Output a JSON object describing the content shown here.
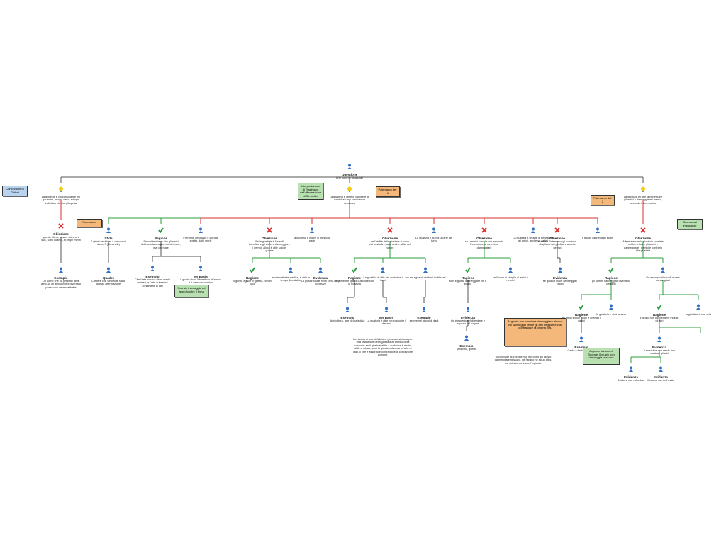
{
  "nodes": [
    {
      "label": "Questione",
      "text": "Che cos'è la Giustizia?"
    },
    {
      "text": "La giustizia è ciò consistente nel garantire, in ogni caso, ad ogni individuo ciò che gli spetta"
    },
    {
      "text": "La giustizia è l'arte di condurre gli uomini ad una convivenza armonica"
    },
    {
      "text": "La giustizia è l'arte di beneficare gli amici e danneggiare i nemici, secondo il loro merito"
    },
    {
      "label": "Obiezione",
      "text": "questo ritiene essere ciò che è suo, sotto quanto, ai propri meriti"
    },
    {
      "label": "Sfida",
      "text": "È giusto restituire a ciascuno i doveri? (Simonide)"
    },
    {
      "label": "Ragione",
      "text": "Simonide ritiene che gli amici debbano fare agli amici del bene, mai del male"
    },
    {
      "text": "Il termine del giusto è ciò che spetta, dati i meriti"
    },
    {
      "label": "Obiezione",
      "text": "Se la giustizia è l'arte di beneficare gli amici e danneggiare i nemici, allora è utile solo in guerra"
    },
    {
      "text": "la giustizia è inutile in tempo di pace"
    },
    {
      "label": "Obiezione",
      "text": "se l'abilità della giustizia si trova nel custodire, sarà anche abile nel rubare"
    },
    {
      "text": "La giustizia è quindi un'arte del furto"
    },
    {
      "label": "Obiezione",
      "text": "se i nemici sono buoni, secondo Polemarco, si dovrebbe danneggiarli"
    },
    {
      "text": "La giustizia è un'arte di beneficare gli amici, anche se cattivi"
    },
    {
      "label": "Obiezione",
      "text": "secondo Polemarco gli uomini si sbagliano nel giudicare amici e nemici"
    },
    {
      "text": "Il giusto danneggia i buoni"
    },
    {
      "label": "Obiezione",
      "text": "Affermare che la giustizia consiste nel beneficare gli amici e danneggiare i nemici è contrario alla giustizia"
    },
    {
      "label": "Esempio",
      "text": "Un uomo che ha prestato delle armi ad un amico che è diventato pazzo non deve restituirle"
    },
    {
      "label": "Quadro",
      "text": "Credere che Simonide sia di questa affermazione"
    },
    {
      "label": "Esempio",
      "text": "Che l'arte medica dà ai corpi i farmaci, e l'arte culinaria i condimenti ai cibi"
    },
    {
      "label": "My Basis",
      "text": "Il giusto dona il beneficio all'amico e il danno al nemico"
    },
    {
      "label": "Ragione",
      "text": "Il giusto agisce in guerra, non in pace"
    },
    {
      "text": "anche nell'arte medica, è utile in tempo di malattia"
    },
    {
      "label": "Evidenza",
      "text": "La giustizia utile nella sfera delle ricchezze"
    },
    {
      "label": "Ragione",
      "text": "Si potrebbe quindi custodire con la giustizia"
    },
    {
      "text": "La giustizia è utile per custodire i beni"
    },
    {
      "text": "ma nei riguardi dei beni inutilizzati"
    },
    {
      "label": "Ragione",
      "text": "Non è giusto danneggiare chi è buono"
    },
    {
      "text": "se l'uomo si sbaglia di amici e nemici"
    },
    {
      "label": "Evidenza",
      "text": "se giudica male, danneggia i buoni"
    },
    {
      "label": "Ragione",
      "text": "gli uomini danneggiati diventano peggiori"
    },
    {
      "text": "Un esempio di cavalli e cani danneggiati"
    },
    {
      "label": "Esempio",
      "text": "Agricoltura, arte del calzolaio"
    },
    {
      "label": "My Basis",
      "text": "La giustizia è utile per custodire il denaro"
    },
    {
      "label": "Esempio",
      "text": "servire nei giochi di dadi"
    },
    {
      "label": "Evidenza",
      "text": "chi è esperto nel difendere è esperto nel colpire"
    },
    {
      "label": "Esempio",
      "text": "Medicina, guerra"
    },
    {
      "label": "Ragione",
      "text": "gli amici sono i buoni e i nemici i cattivi"
    },
    {
      "text": "la giustizia è virtù umana"
    },
    {
      "label": "Ragione",
      "text": "il giusto non può rendere ingiusti gli altri"
    },
    {
      "text": "la giustizia è una virtù"
    },
    {
      "label": "Esempio",
      "text": "Caldo e freddo, musica"
    },
    {
      "label": "Evidenza",
      "text": "Il musicista non rende non musicali gli altri"
    },
    {
      "label": "Evidenza",
      "text": "Il calore non raffredda"
    },
    {
      "label": "Evidenza",
      "text": "Il buono non fa il male"
    }
  ],
  "notes": [
    "Concezione di Grifoni",
    "Interpretazione di Trasimaco dell'affermazione di Simonide",
    "Polemarco def. 1",
    "Polemarco def. 2",
    "Polemarco",
    "Socrate ad imputatore",
    "Socrate incoraggia ad approfondire il tema",
    "Al giusto non conviene danneggiare alcuno: chi danneggia rende gli altri peggiori e così contraddice la propria virtù",
    "Argomentazione di Socrate: il giusto non danneggia nessuno"
  ],
  "paragraphs": [
    "La risorsa di una definizione generale si rivela per una restrizione della giustizia all'ambito della custodia: se il giusto è abile a custodire è anche abile a rubare; così la giustizia diventa un'arte di ladri, il che è assurdo e contraddice la concezione comune.",
    "Si conclude quindi che non è proprio del giusto danneggiare nessuno, né l'amico né alcun altro, ma del suo contrario, l'ingiusto."
  ]
}
